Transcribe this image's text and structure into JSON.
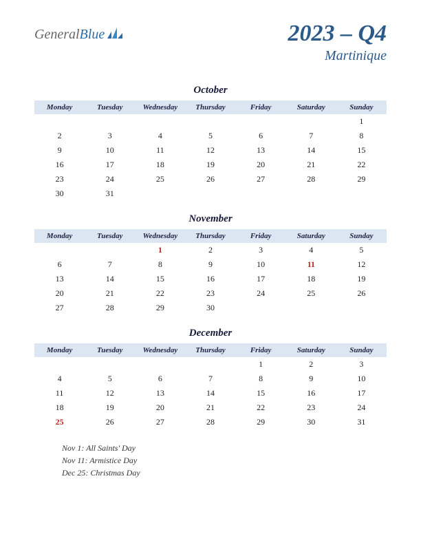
{
  "logo": {
    "part1": "General",
    "part2": "Blue"
  },
  "title": "2023 – Q4",
  "region": "Martinique",
  "weekdays": [
    "Monday",
    "Tuesday",
    "Wednesday",
    "Thursday",
    "Friday",
    "Saturday",
    "Sunday"
  ],
  "colors": {
    "header_bg": "#dce5f2",
    "title_color": "#2b5a8a",
    "holiday_color": "#c02020",
    "text_color": "#222222"
  },
  "months": [
    {
      "name": "October",
      "weeks": [
        [
          "",
          "",
          "",
          "",
          "",
          "",
          "1"
        ],
        [
          "2",
          "3",
          "4",
          "5",
          "6",
          "7",
          "8"
        ],
        [
          "9",
          "10",
          "11",
          "12",
          "13",
          "14",
          "15"
        ],
        [
          "16",
          "17",
          "18",
          "19",
          "20",
          "21",
          "22"
        ],
        [
          "23",
          "24",
          "25",
          "26",
          "27",
          "28",
          "29"
        ],
        [
          "30",
          "31",
          "",
          "",
          "",
          "",
          ""
        ]
      ],
      "holidays": []
    },
    {
      "name": "November",
      "weeks": [
        [
          "",
          "",
          "1",
          "2",
          "3",
          "4",
          "5"
        ],
        [
          "6",
          "7",
          "8",
          "9",
          "10",
          "11",
          "12"
        ],
        [
          "13",
          "14",
          "15",
          "16",
          "17",
          "18",
          "19"
        ],
        [
          "20",
          "21",
          "22",
          "23",
          "24",
          "25",
          "26"
        ],
        [
          "27",
          "28",
          "29",
          "30",
          "",
          "",
          ""
        ]
      ],
      "holidays": [
        "1",
        "11"
      ]
    },
    {
      "name": "December",
      "weeks": [
        [
          "",
          "",
          "",
          "",
          "1",
          "2",
          "3"
        ],
        [
          "4",
          "5",
          "6",
          "7",
          "8",
          "9",
          "10"
        ],
        [
          "11",
          "12",
          "13",
          "14",
          "15",
          "16",
          "17"
        ],
        [
          "18",
          "19",
          "20",
          "21",
          "22",
          "23",
          "24"
        ],
        [
          "25",
          "26",
          "27",
          "28",
          "29",
          "30",
          "31"
        ]
      ],
      "holidays": [
        "25"
      ]
    }
  ],
  "holiday_notes": [
    "Nov 1: All Saints' Day",
    "Nov 11: Armistice Day",
    "Dec 25: Christmas Day"
  ]
}
